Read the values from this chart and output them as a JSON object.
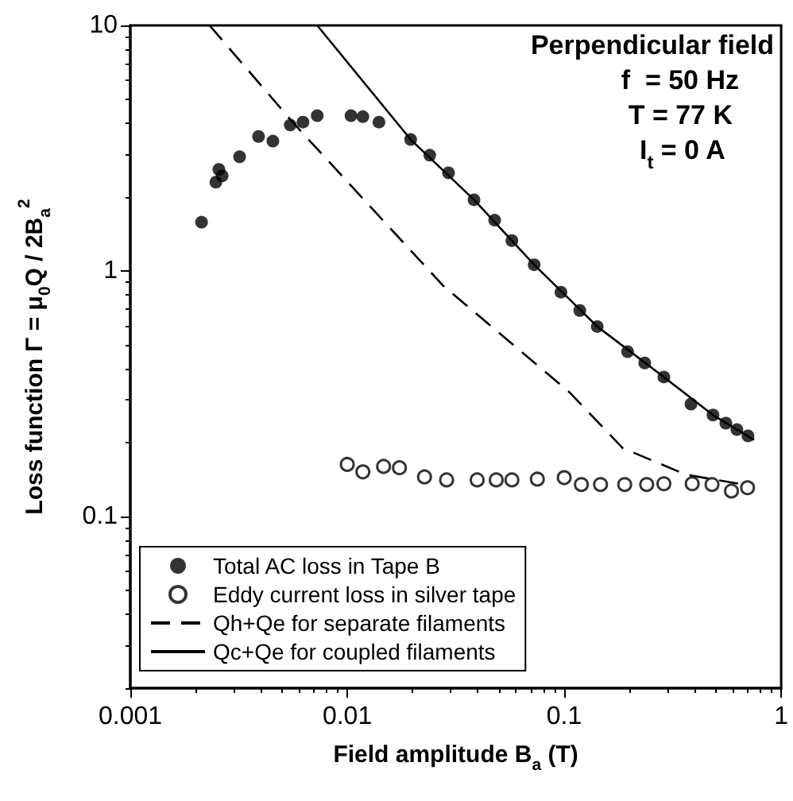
{
  "chart_data": {
    "type": "scatter",
    "xlabel": "Field amplitude B$_{a}$ (T)",
    "ylabel": "Loss function Γ = μ$_{0}$Q / 2B$_{a}$$^{2}$",
    "annotations": [
      "Perpendicular field",
      "f  = 50 Hz",
      "T = 77 K",
      "I$_{t}$ = 0 A"
    ],
    "log": "xy",
    "xlim": [
      0.001,
      1
    ],
    "xticks": [
      0.001,
      0.01,
      0.1,
      1
    ],
    "ylim": [
      0.02,
      10
    ],
    "yticks": [
      0.1,
      1,
      10
    ],
    "grid": false,
    "legend": "bottom left",
    "series": [
      {
        "name": "Total AC loss in Tape B",
        "color": "#000000",
        "marker": "circle",
        "x": [
          0.00213,
          0.00248,
          0.00256,
          0.00265,
          0.00319,
          0.0039,
          0.00454,
          0.00546,
          0.00625,
          0.00727,
          0.0104,
          0.0118,
          0.014,
          0.0196,
          0.024,
          0.0293,
          0.0384,
          0.0478,
          0.0574,
          0.0727,
          0.0966,
          0.118,
          0.142,
          0.196,
          0.235,
          0.288,
          0.384,
          0.485,
          0.556,
          0.625,
          0.703
        ],
        "values": [
          1.58,
          2.3,
          2.59,
          2.44,
          2.92,
          3.53,
          3.38,
          3.93,
          4.04,
          4.29,
          4.29,
          4.25,
          4.04,
          3.43,
          2.96,
          2.51,
          1.95,
          1.61,
          1.33,
          1.06,
          0.82,
          0.69,
          0.594,
          0.469,
          0.422,
          0.37,
          0.287,
          0.259,
          0.24,
          0.226,
          0.213
        ]
      },
      {
        "name": "Eddy current loss in silver tape",
        "color": "#000000",
        "marker": "circle",
        "x": [
          0.01,
          0.0118,
          0.0147,
          0.0174,
          0.0227,
          0.0287,
          0.0397,
          0.0486,
          0.0574,
          0.0752,
          0.1,
          0.12,
          0.147,
          0.19,
          0.24,
          0.288,
          0.389,
          0.48,
          0.59,
          0.7
        ],
        "values": [
          0.163,
          0.152,
          0.16,
          0.158,
          0.145,
          0.141,
          0.141,
          0.141,
          0.141,
          0.142,
          0.144,
          0.135,
          0.135,
          0.135,
          0.135,
          0.136,
          0.136,
          0.135,
          0.127,
          0.131
        ]
      },
      {
        "name": "Qh+Qe for separate filaments",
        "type": "line",
        "color": "#000000",
        "marker": "none",
        "line_style": "dashed",
        "x": [
          0.00232,
          0.00565,
          0.0277,
          0.106,
          0.186,
          0.365,
          0.67
        ],
        "values": [
          10,
          4.0,
          0.87,
          0.32,
          0.19,
          0.148,
          0.135
        ]
      },
      {
        "name": "Qc+Qe for coupled filaments",
        "type": "line",
        "color": "#000000",
        "marker": "none",
        "line_style": "solid",
        "x": [
          0.00727,
          0.0196,
          0.0384,
          0.0727,
          0.142,
          0.288,
          0.485,
          0.75
        ],
        "values": [
          10,
          3.43,
          1.95,
          1.06,
          0.594,
          0.37,
          0.259,
          0.205
        ]
      }
    ]
  }
}
